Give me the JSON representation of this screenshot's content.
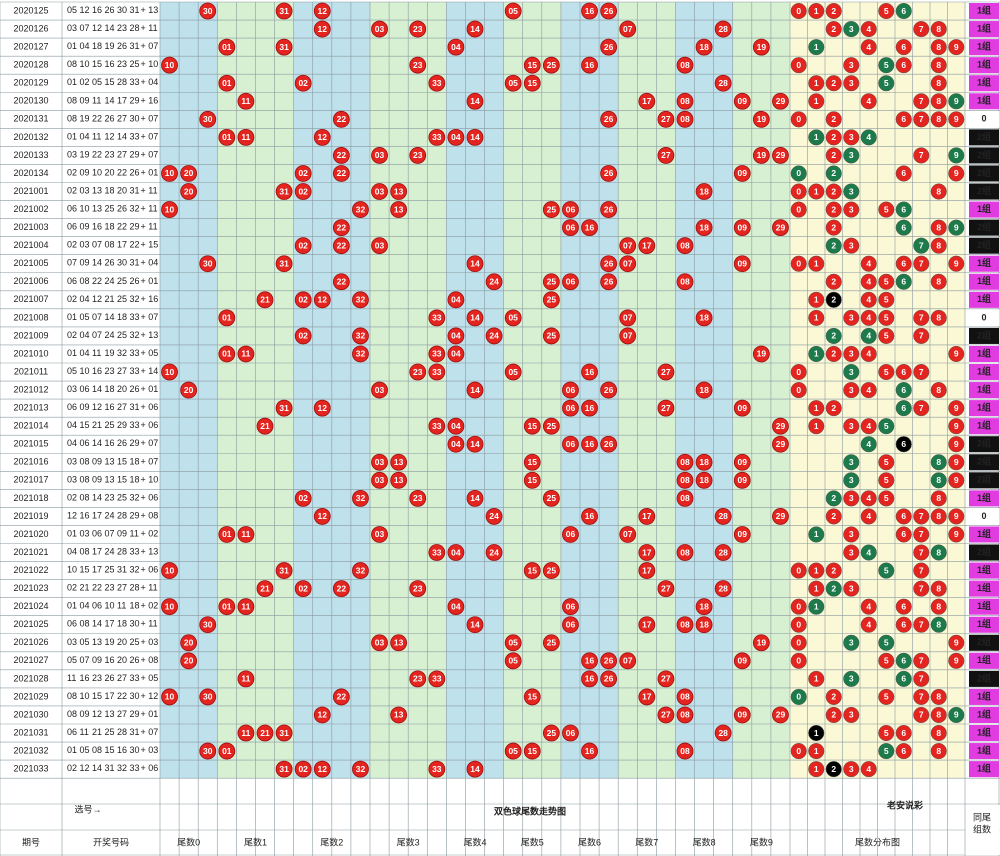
{
  "rows": [
    {
      "issue": "2020125",
      "reds": [
        "05",
        "12",
        "16",
        "26",
        "30",
        "31"
      ],
      "blue": "+ 13",
      "group": "1组"
    },
    {
      "issue": "2020126",
      "reds": [
        "03",
        "07",
        "12",
        "14",
        "23",
        "28"
      ],
      "blue": "+ 11",
      "group": "1组"
    },
    {
      "issue": "2020127",
      "reds": [
        "01",
        "04",
        "18",
        "19",
        "26",
        "31"
      ],
      "blue": "+ 07",
      "group": "1组"
    },
    {
      "issue": "2020128",
      "reds": [
        "08",
        "10",
        "15",
        "16",
        "23",
        "25"
      ],
      "blue": "+ 10",
      "group": "1组"
    },
    {
      "issue": "2020129",
      "reds": [
        "01",
        "02",
        "05",
        "15",
        "28",
        "33"
      ],
      "blue": "+ 04",
      "group": "1组"
    },
    {
      "issue": "2020130",
      "reds": [
        "08",
        "09",
        "11",
        "14",
        "17",
        "29"
      ],
      "blue": "+ 16",
      "group": "1组"
    },
    {
      "issue": "2020131",
      "reds": [
        "08",
        "19",
        "22",
        "26",
        "27",
        "30"
      ],
      "blue": "+ 07",
      "group": "0"
    },
    {
      "issue": "2020132",
      "reds": [
        "01",
        "04",
        "11",
        "12",
        "14",
        "33"
      ],
      "blue": "+ 07",
      "group": "2组"
    },
    {
      "issue": "2020133",
      "reds": [
        "03",
        "19",
        "22",
        "23",
        "27",
        "29"
      ],
      "blue": "+ 07",
      "group": "2组"
    },
    {
      "issue": "2020134",
      "reds": [
        "02",
        "09",
        "10",
        "20",
        "22",
        "26"
      ],
      "blue": "+ 01",
      "group": "2组"
    },
    {
      "issue": "2021001",
      "reds": [
        "02",
        "03",
        "13",
        "18",
        "20",
        "31"
      ],
      "blue": "+ 11",
      "group": "2组"
    },
    {
      "issue": "2021002",
      "reds": [
        "06",
        "10",
        "13",
        "25",
        "26",
        "32"
      ],
      "blue": "+ 11",
      "group": "1组"
    },
    {
      "issue": "2021003",
      "reds": [
        "06",
        "09",
        "16",
        "18",
        "22",
        "29"
      ],
      "blue": "+ 11",
      "group": "2组"
    },
    {
      "issue": "2021004",
      "reds": [
        "02",
        "03",
        "07",
        "08",
        "17",
        "22"
      ],
      "blue": "+ 15",
      "group": "2组"
    },
    {
      "issue": "2021005",
      "reds": [
        "07",
        "09",
        "14",
        "26",
        "30",
        "31"
      ],
      "blue": "+ 04",
      "group": "1组"
    },
    {
      "issue": "2021006",
      "reds": [
        "06",
        "08",
        "22",
        "24",
        "25",
        "26"
      ],
      "blue": "+ 01",
      "group": "1组"
    },
    {
      "issue": "2021007",
      "reds": [
        "02",
        "04",
        "12",
        "21",
        "25",
        "32"
      ],
      "blue": "+ 16",
      "group": "1组"
    },
    {
      "issue": "2021008",
      "reds": [
        "01",
        "05",
        "07",
        "14",
        "18",
        "33"
      ],
      "blue": "+ 07",
      "group": "0"
    },
    {
      "issue": "2021009",
      "reds": [
        "02",
        "04",
        "07",
        "24",
        "25",
        "32"
      ],
      "blue": "+ 13",
      "group": "2组"
    },
    {
      "issue": "2021010",
      "reds": [
        "01",
        "04",
        "11",
        "19",
        "32",
        "33"
      ],
      "blue": "+ 05",
      "group": "1组"
    },
    {
      "issue": "2021011",
      "reds": [
        "05",
        "10",
        "16",
        "23",
        "27",
        "33"
      ],
      "blue": "+ 14",
      "group": "1组"
    },
    {
      "issue": "2021012",
      "reds": [
        "03",
        "06",
        "14",
        "18",
        "20",
        "26"
      ],
      "blue": "+ 01",
      "group": "1组"
    },
    {
      "issue": "2021013",
      "reds": [
        "06",
        "09",
        "12",
        "16",
        "27",
        "31"
      ],
      "blue": "+ 06",
      "group": "1组"
    },
    {
      "issue": "2021014",
      "reds": [
        "04",
        "15",
        "21",
        "25",
        "29",
        "33"
      ],
      "blue": "+ 06",
      "group": "1组"
    },
    {
      "issue": "2021015",
      "reds": [
        "04",
        "06",
        "14",
        "16",
        "26",
        "29"
      ],
      "blue": "+ 07",
      "group": "2组"
    },
    {
      "issue": "2021016",
      "reds": [
        "03",
        "08",
        "09",
        "13",
        "15",
        "18"
      ],
      "blue": "+ 07",
      "group": "2组"
    },
    {
      "issue": "2021017",
      "reds": [
        "03",
        "08",
        "09",
        "13",
        "15",
        "18"
      ],
      "blue": "+ 10",
      "group": "2组"
    },
    {
      "issue": "2021018",
      "reds": [
        "02",
        "08",
        "14",
        "23",
        "25",
        "32"
      ],
      "blue": "+ 06",
      "group": "1组"
    },
    {
      "issue": "2021019",
      "reds": [
        "12",
        "16",
        "17",
        "24",
        "28",
        "29"
      ],
      "blue": "+ 08",
      "group": "0"
    },
    {
      "issue": "2021020",
      "reds": [
        "01",
        "03",
        "06",
        "07",
        "09",
        "11"
      ],
      "blue": "+ 02",
      "group": "1组"
    },
    {
      "issue": "2021021",
      "reds": [
        "04",
        "08",
        "17",
        "24",
        "28",
        "33"
      ],
      "blue": "+ 13",
      "group": "2组"
    },
    {
      "issue": "2021022",
      "reds": [
        "10",
        "15",
        "17",
        "25",
        "31",
        "32"
      ],
      "blue": "+ 06",
      "group": "1组"
    },
    {
      "issue": "2021023",
      "reds": [
        "02",
        "21",
        "22",
        "23",
        "27",
        "28"
      ],
      "blue": "+ 11",
      "group": "1组"
    },
    {
      "issue": "2021024",
      "reds": [
        "01",
        "04",
        "06",
        "10",
        "11",
        "18"
      ],
      "blue": "+ 02",
      "group": "1组"
    },
    {
      "issue": "2021025",
      "reds": [
        "06",
        "08",
        "14",
        "17",
        "18",
        "30"
      ],
      "blue": "+ 11",
      "group": "1组"
    },
    {
      "issue": "2021026",
      "reds": [
        "03",
        "05",
        "13",
        "19",
        "20",
        "25"
      ],
      "blue": "+ 03",
      "group": "2组"
    },
    {
      "issue": "2021027",
      "reds": [
        "05",
        "07",
        "09",
        "16",
        "20",
        "26"
      ],
      "blue": "+ 08",
      "group": "1组"
    },
    {
      "issue": "2021028",
      "reds": [
        "11",
        "16",
        "23",
        "26",
        "27",
        "33"
      ],
      "blue": "+ 05",
      "group": "2组"
    },
    {
      "issue": "2021029",
      "reds": [
        "08",
        "10",
        "15",
        "17",
        "22",
        "30"
      ],
      "blue": "+ 12",
      "group": "1组"
    },
    {
      "issue": "2021030",
      "reds": [
        "08",
        "09",
        "12",
        "13",
        "27",
        "29"
      ],
      "blue": "+ 01",
      "group": "1组"
    },
    {
      "issue": "2021031",
      "reds": [
        "06",
        "11",
        "21",
        "25",
        "28",
        "31"
      ],
      "blue": "+ 07",
      "group": "1组"
    },
    {
      "issue": "2021032",
      "reds": [
        "01",
        "05",
        "08",
        "15",
        "16",
        "30"
      ],
      "blue": "+ 03",
      "group": "1组"
    },
    {
      "issue": "2021033",
      "reds": [
        "02",
        "12",
        "14",
        "31",
        "32",
        "33"
      ],
      "blue": "+ 06",
      "group": "1组"
    }
  ],
  "distribution_digits": [
    "0",
    "1",
    "2",
    "3",
    "4",
    "5",
    "6",
    "7",
    "8",
    "9"
  ],
  "group_styles": {
    "1组": "#e03ce0",
    "2组": "#111111",
    "0": "#ffffff"
  },
  "select_label": "选号→",
  "title": "双色球尾数走势图",
  "watermark": "老安说彩",
  "issue_header": "期号",
  "draw_header": "开奖号码",
  "section_labels": [
    "尾数0",
    "尾数1",
    "尾数2",
    "尾数3",
    "尾数4",
    "尾数5",
    "尾数6",
    "尾数7",
    "尾数8",
    "尾数9"
  ],
  "distribution_header": "尾数分布图",
  "group_header": [
    "同尾",
    "组数"
  ]
}
